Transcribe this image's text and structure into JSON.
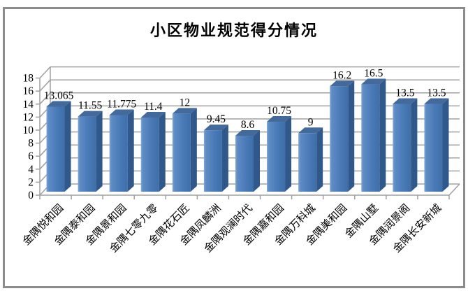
{
  "title": "小区物业规范得分情况",
  "colors": {
    "frame_border": "#8c8c8c",
    "grid": "#a0a0a0",
    "axis": "#a0a0a0",
    "text": "#000000",
    "bar_front": "#4a7bb8",
    "bar_front_light": "#7fa5d3",
    "bar_front_dark": "#3f6ea8",
    "bar_side": "#31588a",
    "bar_top": "#44699b"
  },
  "chart_data": {
    "type": "bar",
    "style": "3d-column",
    "title": "小区物业规范得分情况",
    "xlabel": "",
    "ylabel": "",
    "ylim": [
      0,
      18
    ],
    "y_ticks": [
      0,
      2,
      4,
      6,
      8,
      10,
      12,
      14,
      16,
      18
    ],
    "grid": true,
    "legend": false,
    "categories": [
      "金隅悦和园",
      "金隅泰和园",
      "金隅景和园",
      "金隅七零九零",
      "金隅花石匠",
      "金隅凤麟洲",
      "金隅观澜时代",
      "金隅嘉和园",
      "金隅万科城",
      "金隅美和园",
      "金隅山墅",
      "金隅润景阁",
      "金隅长安新城"
    ],
    "values": [
      13.065,
      11.55,
      11.775,
      11.4,
      12,
      9.45,
      8.6,
      10.75,
      9,
      16.2,
      16.5,
      13.5,
      13.5
    ],
    "value_labels": [
      "13.065",
      "11.55",
      "11.775",
      "11.4",
      "12",
      "9.45",
      "8.6",
      "10.75",
      "9",
      "16.2",
      "16.5",
      "13.5",
      "13.5"
    ]
  }
}
